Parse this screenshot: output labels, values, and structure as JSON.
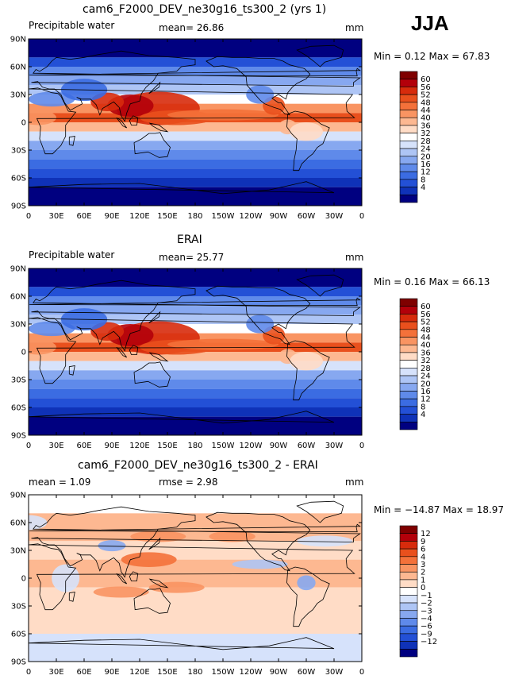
{
  "season": "JJA",
  "panels": [
    {
      "title": "cam6_F2000_DEV_ne30g16_ts300_2 (yrs 1)",
      "left_label": "Precipitable water",
      "center_label": "mean=  26.86",
      "right_label": "mm",
      "minmax": "Min =   0.12 Max =  67.83",
      "kind": "model",
      "colorbar": {
        "labels": [
          "60",
          "56",
          "52",
          "48",
          "44",
          "40",
          "36",
          "32",
          "28",
          "24",
          "20",
          "16",
          "12",
          "8",
          "4"
        ],
        "colors": [
          "#7f0000",
          "#b3000a",
          "#d72b0c",
          "#e9501d",
          "#f4713a",
          "#f99462",
          "#fdb891",
          "#ffdcc6",
          "#ffffff",
          "#d6e2fb",
          "#aec5f5",
          "#87a8f0",
          "#5f8aea",
          "#3b6ce2",
          "#2350d6",
          "#0f32b8",
          "#000080"
        ]
      }
    },
    {
      "title": "ERAI",
      "left_label": "Precipitable water",
      "center_label": "mean=  25.77",
      "right_label": "mm",
      "minmax": "Min =   0.16 Max =  66.13",
      "kind": "obs",
      "colorbar": {
        "labels": [
          "60",
          "56",
          "52",
          "48",
          "44",
          "40",
          "36",
          "32",
          "28",
          "24",
          "20",
          "16",
          "12",
          "8",
          "4"
        ],
        "colors": [
          "#7f0000",
          "#b3000a",
          "#d72b0c",
          "#e9501d",
          "#f4713a",
          "#f99462",
          "#fdb891",
          "#ffdcc6",
          "#ffffff",
          "#d6e2fb",
          "#aec5f5",
          "#87a8f0",
          "#5f8aea",
          "#3b6ce2",
          "#2350d6",
          "#0f32b8",
          "#000080"
        ]
      }
    },
    {
      "title": "cam6_F2000_DEV_ne30g16_ts300_2 - ERAI",
      "left_label": "mean =   1.09",
      "center_label": "rmse =   2.98",
      "right_label": "mm",
      "minmax": "Min = −14.87 Max =  18.97",
      "kind": "diff",
      "colorbar": {
        "labels": [
          "12",
          "9",
          "6",
          "4",
          "3",
          "2",
          "1",
          "0",
          "−1",
          "−2",
          "−3",
          "−4",
          "−6",
          "−9",
          "−12"
        ],
        "colors": [
          "#7f0000",
          "#b3000a",
          "#d72b0c",
          "#e9501d",
          "#f4713a",
          "#f99462",
          "#fdb891",
          "#ffdcc6",
          "#ffffff",
          "#d6e2fb",
          "#aec5f5",
          "#87a8f0",
          "#5f8aea",
          "#3b6ce2",
          "#2350d6",
          "#0f32b8",
          "#000080"
        ]
      }
    }
  ],
  "axes": {
    "lat_labels": [
      "90N",
      "60N",
      "30N",
      "0",
      "30S",
      "60S",
      "90S"
    ],
    "lon_labels": [
      "0",
      "30E",
      "60E",
      "90E",
      "120E",
      "150E",
      "180",
      "150W",
      "120W",
      "90W",
      "60W",
      "30W",
      "0"
    ]
  }
}
